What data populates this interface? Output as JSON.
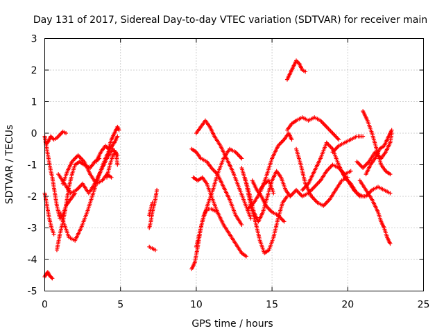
{
  "chart_data": {
    "type": "scatter",
    "title": "Day 131 of 2017, Sidereal Day-to-day VTEC variation (SDTVAR) for receiver main",
    "xlabel": "GPS time / hours",
    "ylabel": "SDTVAR / TECUs",
    "xlim": [
      0,
      25
    ],
    "ylim": [
      -5,
      3
    ],
    "x_ticks": [
      0,
      5,
      10,
      15,
      20,
      25
    ],
    "x_tick_labels": [
      "0",
      "5",
      "10",
      "15",
      "20",
      "25"
    ],
    "y_ticks": [
      -5,
      -4,
      -3,
      -2,
      -1,
      0,
      1,
      2,
      3
    ],
    "y_tick_labels": [
      "-5",
      "-4",
      "-3",
      "-2",
      "-1",
      "0",
      "1",
      "2",
      "3"
    ],
    "grid": true,
    "marker": "+",
    "color": "#ff0000",
    "series": [
      {
        "name": "s01",
        "x": [
          0.0,
          0.1,
          0.2,
          0.3,
          0.4,
          0.5
        ],
        "y": [
          -4.55,
          -4.45,
          -4.4,
          -4.5,
          -4.55,
          -4.6
        ]
      },
      {
        "name": "s02",
        "x": [
          0.0,
          0.1,
          0.25,
          0.4,
          0.6,
          0.8,
          1.0,
          1.2,
          1.4
        ],
        "y": [
          -0.1,
          -0.35,
          -0.25,
          -0.1,
          -0.2,
          -0.15,
          -0.05,
          0.05,
          0.0
        ]
      },
      {
        "name": "s03",
        "x": [
          0.0,
          0.1,
          0.25,
          0.4,
          0.5,
          0.6,
          0.8,
          1.0,
          1.2,
          1.4,
          1.7,
          2.0
        ],
        "y": [
          -0.1,
          -0.4,
          -0.8,
          -1.2,
          -1.4,
          -1.7,
          -2.3,
          -2.7,
          -2.6,
          -2.3,
          -2.1,
          -1.9
        ]
      },
      {
        "name": "s04",
        "x": [
          0.0,
          0.15,
          0.3,
          0.45,
          0.6
        ],
        "y": [
          -1.9,
          -2.3,
          -2.7,
          -3.0,
          -3.2
        ]
      },
      {
        "name": "s05",
        "x": [
          0.8,
          1.0,
          1.2,
          1.4,
          1.6,
          1.8,
          2.0,
          2.3,
          2.6,
          3.0,
          3.3,
          3.6
        ],
        "y": [
          -3.7,
          -3.2,
          -2.8,
          -2.3,
          -1.7,
          -1.3,
          -1.0,
          -0.9,
          -1.0,
          -1.1,
          -0.9,
          -0.8
        ]
      },
      {
        "name": "s06",
        "x": [
          1.2,
          1.5,
          1.8,
          2.2,
          2.6,
          3.0,
          3.4,
          3.8,
          4.1,
          4.4
        ],
        "y": [
          -1.6,
          -1.2,
          -0.9,
          -0.7,
          -0.9,
          -1.3,
          -1.6,
          -1.5,
          -1.3,
          -1.4
        ]
      },
      {
        "name": "s07",
        "x": [
          1.0,
          1.3,
          1.6,
          2.0,
          2.4,
          2.8,
          3.2,
          3.6,
          4.0,
          4.3,
          4.6,
          4.8
        ],
        "y": [
          -2.5,
          -2.9,
          -3.3,
          -3.4,
          -3.0,
          -2.5,
          -1.9,
          -1.3,
          -0.8,
          -0.5,
          -0.3,
          -0.1
        ]
      },
      {
        "name": "s08",
        "x": [
          0.9,
          1.3,
          1.7,
          2.1,
          2.5,
          2.9,
          3.3,
          3.7,
          4.1,
          4.5,
          4.8
        ],
        "y": [
          -1.3,
          -1.6,
          -1.9,
          -1.8,
          -1.6,
          -1.9,
          -1.6,
          -1.2,
          -0.8,
          -0.5,
          -0.7
        ]
      },
      {
        "name": "s09",
        "x": [
          3.4,
          3.7,
          4.0,
          4.2,
          4.4,
          4.6,
          4.8,
          4.9
        ],
        "y": [
          -0.9,
          -0.6,
          -0.4,
          -0.5,
          -0.2,
          0.0,
          0.2,
          0.1
        ]
      },
      {
        "name": "s10",
        "x": [
          4.1,
          4.3,
          4.5,
          4.7,
          4.8
        ],
        "y": [
          -1.4,
          -1.0,
          -0.7,
          -0.6,
          -1.0
        ]
      },
      {
        "name": "s11",
        "x": [
          6.9,
          7.0,
          7.1,
          7.2,
          7.3,
          7.4
        ],
        "y": [
          -3.0,
          -2.8,
          -2.5,
          -2.3,
          -2.1,
          -1.8
        ]
      },
      {
        "name": "s12",
        "x": [
          6.9,
          7.0,
          7.1
        ],
        "y": [
          -2.6,
          -2.4,
          -2.2
        ]
      },
      {
        "name": "s13",
        "x": [
          6.9,
          7.1,
          7.3
        ],
        "y": [
          -3.6,
          -3.65,
          -3.7
        ]
      },
      {
        "name": "s14",
        "x": [
          9.7,
          10.0,
          10.3,
          10.7,
          11.0,
          11.4,
          11.8,
          12.2,
          12.6,
          13.0
        ],
        "y": [
          -0.5,
          -0.6,
          -0.8,
          -0.9,
          -1.1,
          -1.3,
          -1.7,
          -2.1,
          -2.6,
          -2.9
        ]
      },
      {
        "name": "s15",
        "x": [
          9.8,
          10.1,
          10.4,
          10.7,
          11.0,
          11.4,
          11.8,
          12.2,
          12.6,
          13.0,
          13.3
        ],
        "y": [
          -1.4,
          -1.5,
          -1.4,
          -1.6,
          -2.0,
          -2.5,
          -2.9,
          -3.2,
          -3.5,
          -3.8,
          -3.9
        ]
      },
      {
        "name": "s16",
        "x": [
          9.7,
          9.9,
          10.1,
          10.3,
          10.5,
          10.7,
          11.0,
          11.4
        ],
        "y": [
          -4.3,
          -4.1,
          -3.6,
          -3.0,
          -2.6,
          -2.4,
          -2.4,
          -2.5
        ]
      },
      {
        "name": "s17",
        "x": [
          10.0,
          10.2,
          10.4,
          10.6,
          10.8,
          11.1,
          11.4,
          11.8,
          12.2,
          12.6,
          13.0
        ],
        "y": [
          -3.6,
          -3.2,
          -2.8,
          -2.5,
          -2.2,
          -1.8,
          -1.3,
          -0.8,
          -0.5,
          -0.6,
          -0.8
        ]
      },
      {
        "name": "s18",
        "x": [
          10.0,
          10.3,
          10.6,
          10.9,
          11.2,
          11.6,
          12.0,
          12.4,
          12.8,
          13.2,
          13.6
        ],
        "y": [
          0.0,
          0.2,
          0.4,
          0.2,
          -0.1,
          -0.4,
          -0.8,
          -1.2,
          -1.7,
          -2.2,
          -2.7
        ]
      },
      {
        "name": "s19",
        "x": [
          13.0,
          13.3,
          13.6,
          13.9,
          14.2,
          14.5,
          14.8,
          15.1,
          15.4,
          15.7,
          16.0
        ],
        "y": [
          -1.1,
          -1.6,
          -2.3,
          -2.8,
          -3.4,
          -3.8,
          -3.7,
          -3.3,
          -2.7,
          -2.2,
          -2.0
        ]
      },
      {
        "name": "s20",
        "x": [
          13.2,
          13.5,
          13.8,
          14.1,
          14.4,
          14.7,
          15.0,
          15.3,
          15.6,
          15.9,
          16.2
        ],
        "y": [
          -1.4,
          -1.9,
          -2.5,
          -2.8,
          -2.5,
          -2.0,
          -1.5,
          -1.2,
          -1.4,
          -1.8,
          -2.0
        ]
      },
      {
        "name": "s21",
        "x": [
          13.4,
          13.8,
          14.2,
          14.6,
          15.0,
          15.4,
          15.8,
          16.1,
          16.3
        ],
        "y": [
          -2.4,
          -2.2,
          -1.9,
          -1.4,
          -0.8,
          -0.4,
          -0.2,
          0.0,
          -0.2
        ]
      },
      {
        "name": "s22",
        "x": [
          13.7,
          14.0,
          14.3,
          14.6,
          15.0,
          15.4,
          15.8
        ],
        "y": [
          -1.5,
          -1.8,
          -2.0,
          -2.3,
          -2.5,
          -2.6,
          -2.8
        ]
      },
      {
        "name": "s23",
        "x": [
          14.2,
          14.5,
          14.8,
          15.1
        ],
        "y": [
          -1.8,
          -1.6,
          -1.5,
          -1.9
        ]
      },
      {
        "name": "s24",
        "x": [
          16.0,
          16.2,
          16.4,
          16.6,
          16.8,
          17.0,
          17.2
        ],
        "y": [
          1.7,
          1.9,
          2.1,
          2.3,
          2.2,
          2.0,
          1.95
        ]
      },
      {
        "name": "s25",
        "x": [
          16.0,
          16.3,
          16.6,
          17.0,
          17.4,
          17.8,
          18.2,
          18.6,
          19.0,
          19.4
        ],
        "y": [
          0.1,
          0.3,
          0.4,
          0.5,
          0.4,
          0.5,
          0.4,
          0.2,
          0.0,
          -0.2
        ]
      },
      {
        "name": "s26",
        "x": [
          16.6,
          16.9,
          17.2,
          17.6,
          18.0,
          18.4,
          18.8,
          19.2,
          19.6,
          20.0
        ],
        "y": [
          -0.5,
          -1.0,
          -1.6,
          -2.0,
          -2.2,
          -2.3,
          -2.1,
          -1.8,
          -1.5,
          -1.4
        ]
      },
      {
        "name": "s27",
        "x": [
          17.0,
          17.4,
          17.8,
          18.2,
          18.6,
          19.0,
          19.4,
          19.8,
          20.2,
          20.6,
          21.0
        ],
        "y": [
          -1.8,
          -1.6,
          -1.2,
          -0.8,
          -0.3,
          -0.5,
          -1.0,
          -1.4,
          -1.6,
          -1.9,
          -2.0
        ]
      },
      {
        "name": "s28",
        "x": [
          16.2,
          16.6,
          17.0,
          17.4,
          17.8,
          18.2,
          18.6,
          19.0,
          19.4,
          19.8,
          20.2
        ],
        "y": [
          -2.0,
          -1.8,
          -2.0,
          -1.9,
          -1.7,
          -1.5,
          -1.2,
          -1.0,
          -1.1,
          -1.3,
          -1.2
        ]
      },
      {
        "name": "s29",
        "x": [
          19.0,
          19.4,
          19.8,
          20.2,
          20.6,
          21.0
        ],
        "y": [
          -0.6,
          -0.4,
          -0.3,
          -0.2,
          -0.1,
          -0.1
        ]
      },
      {
        "name": "s30",
        "x": [
          19.6,
          20.0,
          20.4,
          20.8,
          21.2,
          21.6,
          22.0,
          22.4,
          22.8
        ],
        "y": [
          -1.2,
          -1.5,
          -1.8,
          -2.0,
          -2.0,
          -1.8,
          -1.7,
          -1.8,
          -1.9
        ]
      },
      {
        "name": "s31",
        "x": [
          21.0,
          21.3,
          21.6,
          21.9,
          22.2,
          22.5,
          22.8
        ],
        "y": [
          0.7,
          0.4,
          0.0,
          -0.5,
          -1.0,
          -1.2,
          -1.3
        ]
      },
      {
        "name": "s32",
        "x": [
          20.6,
          21.0,
          21.4,
          21.8,
          22.2,
          22.5,
          22.8,
          22.9
        ],
        "y": [
          -0.9,
          -1.1,
          -0.9,
          -0.6,
          -0.8,
          -0.6,
          -0.3,
          0.0
        ]
      },
      {
        "name": "s33",
        "x": [
          20.8,
          21.2,
          21.6,
          22.0,
          22.2,
          22.4,
          22.6,
          22.8
        ],
        "y": [
          -1.5,
          -1.8,
          -2.1,
          -2.5,
          -2.8,
          -3.0,
          -3.3,
          -3.5
        ]
      },
      {
        "name": "s34",
        "x": [
          21.2,
          21.5,
          21.8,
          22.1,
          22.4,
          22.7,
          22.9
        ],
        "y": [
          -1.3,
          -1.0,
          -0.8,
          -0.5,
          -0.4,
          -0.1,
          0.1
        ]
      }
    ]
  }
}
